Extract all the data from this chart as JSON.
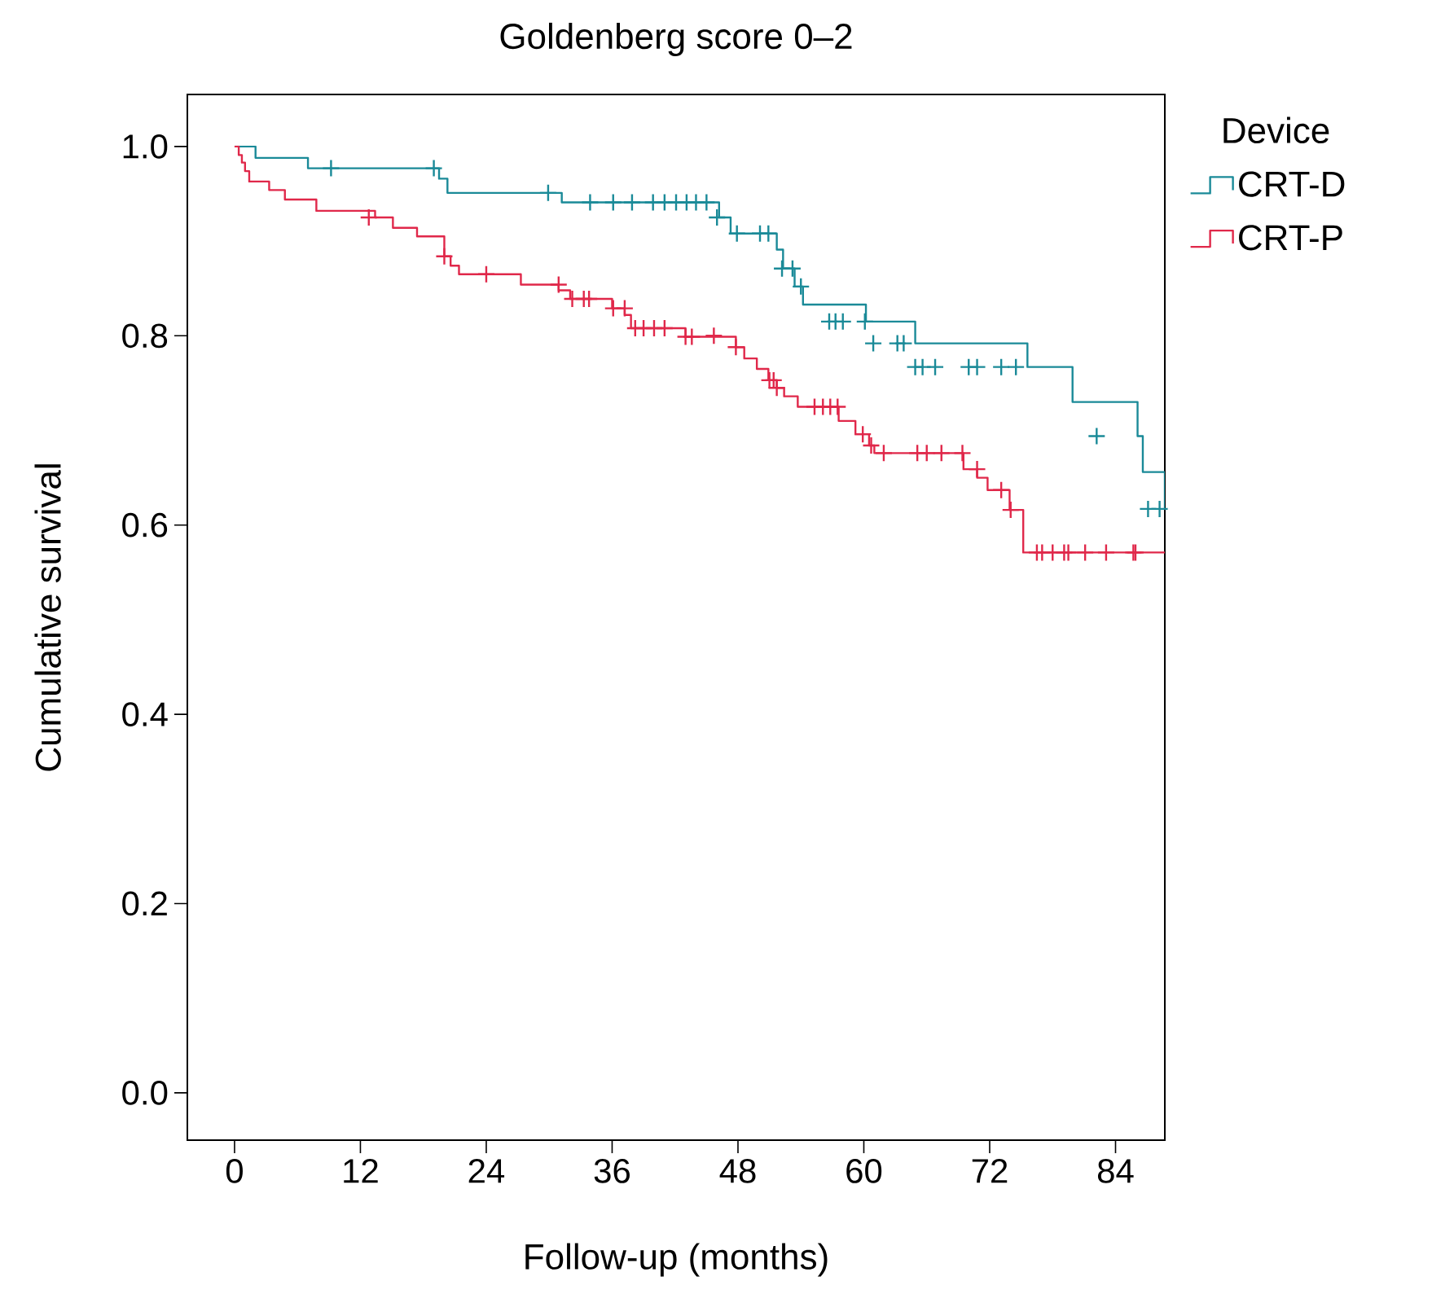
{
  "chart_data": {
    "type": "step",
    "title": "Goldenberg score 0–2",
    "xlabel": "Follow-up (months)",
    "ylabel": "Cumulative survival",
    "legend_title": "Device",
    "xlim": [
      -4.5,
      88.7
    ],
    "ylim": [
      -0.05,
      1.055
    ],
    "xticks": [
      0,
      12,
      24,
      36,
      48,
      60,
      72,
      84
    ],
    "yticks": [
      {
        "value": 0,
        "label": "0.0"
      },
      {
        "value": 0.2,
        "label": "0.2"
      },
      {
        "value": 0.4,
        "label": "0.4"
      },
      {
        "value": 0.6,
        "label": "0.6"
      },
      {
        "value": 0.8,
        "label": "0.8"
      },
      {
        "value": 1,
        "label": "1.0"
      }
    ],
    "grid": false,
    "legend": "top right",
    "series": [
      {
        "name": "CRT-D",
        "color": "#1a8a98",
        "x": [
          0,
          2.0,
          7.0,
          19.5,
          20.3,
          31.2,
          46.2,
          47.3,
          51.7,
          52.3,
          53.4,
          54.2,
          60.2,
          64.9,
          75.6,
          79.9,
          86.1,
          86.6,
          88.7
        ],
        "values": [
          1.0,
          0.988,
          0.977,
          0.966,
          0.951,
          0.941,
          0.925,
          0.908,
          0.891,
          0.871,
          0.852,
          0.833,
          0.815,
          0.792,
          0.767,
          0.73,
          0.694,
          0.656,
          0.617
        ]
      },
      {
        "name": "CRT-P",
        "color": "#e0284a",
        "x": [
          0,
          0.4,
          0.7,
          1.0,
          1.4,
          3.3,
          4.8,
          7.8,
          13.4,
          15.1,
          17.4,
          20.0,
          20.6,
          21.4,
          27.3,
          30.9,
          32.0,
          36.0,
          37.2,
          37.8,
          43.0,
          47.8,
          48.6,
          49.8,
          50.9,
          51.7,
          52.4,
          53.7,
          57.6,
          59.2,
          60.5,
          61.0,
          69.5,
          70.8,
          71.8,
          73.9,
          75.2,
          88.7
        ],
        "values": [
          1.0,
          0.991,
          0.983,
          0.974,
          0.963,
          0.954,
          0.944,
          0.932,
          0.925,
          0.914,
          0.905,
          0.884,
          0.874,
          0.865,
          0.854,
          0.848,
          0.839,
          0.829,
          0.822,
          0.808,
          0.799,
          0.788,
          0.776,
          0.765,
          0.753,
          0.745,
          0.736,
          0.725,
          0.71,
          0.696,
          0.684,
          0.676,
          0.659,
          0.65,
          0.637,
          0.616,
          0.571,
          0.571
        ]
      },
      {
        "type": "scatter",
        "marker": "cross",
        "color": "#1a8a98",
        "x": [
          9.2,
          19.0,
          29.9,
          33.9,
          36.1,
          37.9,
          39.9,
          41.0,
          42.1,
          43.1,
          44.0,
          45.0,
          46.0,
          47.9,
          50.1,
          50.9,
          52.2,
          53.2,
          54.0,
          56.7,
          57.3,
          58.0,
          60.1,
          60.9,
          63.2,
          63.8,
          64.9,
          65.6,
          66.8,
          70.0,
          70.8,
          73.1,
          74.5,
          82.2,
          87.1,
          88.2
        ],
        "values": [
          0.977,
          0.977,
          0.951,
          0.941,
          0.941,
          0.941,
          0.941,
          0.941,
          0.941,
          0.941,
          0.941,
          0.941,
          0.925,
          0.908,
          0.908,
          0.908,
          0.871,
          0.871,
          0.852,
          0.815,
          0.815,
          0.815,
          0.815,
          0.792,
          0.792,
          0.792,
          0.767,
          0.767,
          0.767,
          0.767,
          0.767,
          0.767,
          0.767,
          0.694,
          0.617,
          0.617
        ]
      },
      {
        "type": "scatter",
        "marker": "cross",
        "color": "#e0284a",
        "x": [
          12.8,
          20.0,
          24.0,
          30.9,
          32.2,
          33.3,
          33.8,
          36.1,
          37.2,
          38.2,
          39.0,
          40.0,
          41.0,
          43.0,
          43.6,
          45.7,
          47.8,
          51.0,
          51.4,
          51.7,
          55.3,
          56.1,
          56.8,
          57.5,
          59.9,
          60.7,
          61.9,
          65.1,
          66.0,
          67.4,
          69.4,
          70.8,
          73.1,
          74.0,
          76.5,
          77.0,
          78.0,
          79.1,
          79.5,
          81.1,
          83.1,
          85.7,
          85.9
        ],
        "values": [
          0.925,
          0.884,
          0.865,
          0.854,
          0.839,
          0.839,
          0.839,
          0.829,
          0.829,
          0.808,
          0.808,
          0.808,
          0.808,
          0.799,
          0.799,
          0.8,
          0.788,
          0.753,
          0.753,
          0.745,
          0.725,
          0.725,
          0.725,
          0.725,
          0.696,
          0.684,
          0.676,
          0.676,
          0.676,
          0.676,
          0.676,
          0.659,
          0.637,
          0.616,
          0.571,
          0.571,
          0.571,
          0.571,
          0.571,
          0.571,
          0.571,
          0.571,
          0.571
        ]
      }
    ]
  }
}
